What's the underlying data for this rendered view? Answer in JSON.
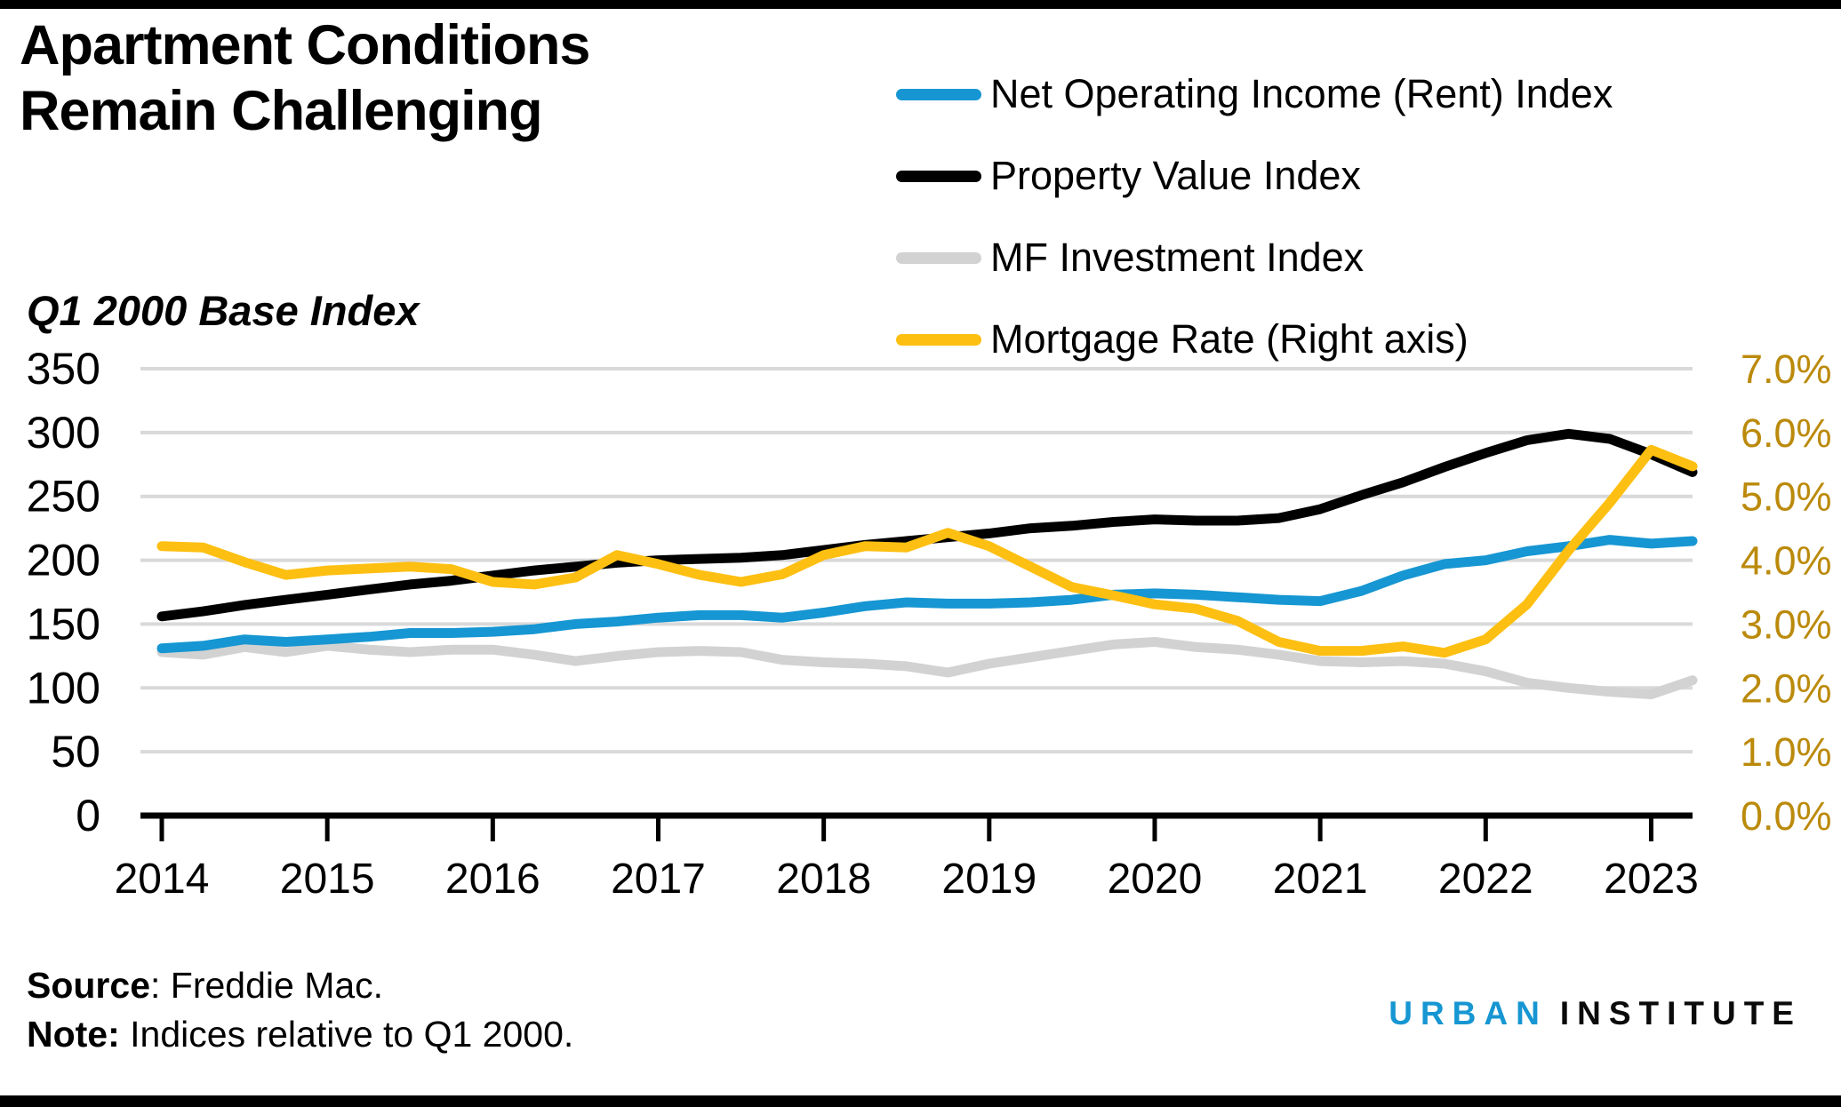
{
  "header": {
    "title": "Apartment Conditions\nRemain Challenging"
  },
  "axis_title_left": "Q1 2000 Base Index",
  "source": {
    "label": "Source",
    "text": ": Freddie Mac."
  },
  "note": {
    "label": "Note:",
    "text": " Indices relative to Q1 2000."
  },
  "logo": {
    "urban": "URBAN",
    "institute": "INSTITUTE"
  },
  "colors": {
    "accent_blue": "#1696d2",
    "black": "#000000",
    "gray_line": "#d2d2d2",
    "yellow": "#fdbf11",
    "gold_axis_text": "#bb8a0b",
    "gridline": "#d9d9d9"
  },
  "chart_data": {
    "type": "line",
    "title": "Apartment Conditions Remain Challenging",
    "ylabel_left": "Q1 2000 Base Index",
    "x_unit": "quarterly, 2014Q1 through 2023Q2",
    "x_tick_labels": [
      "2014",
      "2015",
      "2016",
      "2017",
      "2018",
      "2019",
      "2020",
      "2021",
      "2022",
      "2023"
    ],
    "left_axis": {
      "min": 0,
      "max": 350,
      "step": 50,
      "labels": [
        "0",
        "50",
        "100",
        "150",
        "200",
        "250",
        "300",
        "350"
      ]
    },
    "right_axis": {
      "min": 0,
      "max": 7,
      "step": 1,
      "labels": [
        "0.0%",
        "1.0%",
        "2.0%",
        "3.0%",
        "4.0%",
        "5.0%",
        "6.0%",
        "7.0%"
      ],
      "color": "#bb8a0b"
    },
    "grid": "horizontal only",
    "legend_position": "top-right",
    "draw_order": [
      2,
      0,
      1,
      3
    ],
    "series": [
      {
        "name": "Net Operating Income (Rent) Index",
        "color": "#1696d2",
        "axis": "left",
        "values": [
          131,
          133,
          138,
          136,
          138,
          140,
          143,
          143,
          144,
          146,
          150,
          152,
          155,
          157,
          157,
          155,
          159,
          164,
          167,
          166,
          166,
          167,
          169,
          173,
          174,
          173,
          171,
          169,
          168,
          176,
          188,
          197,
          200,
          207,
          211,
          216,
          213,
          215
        ]
      },
      {
        "name": "Property Value Index",
        "color": "#000000",
        "axis": "left",
        "values": [
          156,
          160,
          165,
          169,
          173,
          177,
          181,
          184,
          188,
          192,
          195,
          198,
          200,
          201,
          202,
          204,
          208,
          212,
          215,
          218,
          221,
          225,
          227,
          230,
          232,
          231,
          231,
          233,
          240,
          251,
          261,
          273,
          284,
          294,
          299,
          295,
          283,
          269
        ]
      },
      {
        "name": "MF Investment Index",
        "color": "#d2d2d2",
        "axis": "left",
        "values": [
          128,
          126,
          132,
          128,
          133,
          130,
          128,
          130,
          130,
          126,
          121,
          125,
          128,
          129,
          128,
          122,
          120,
          119,
          117,
          112,
          119,
          124,
          129,
          134,
          136,
          132,
          130,
          126,
          121,
          120,
          121,
          119,
          113,
          104,
          100,
          97,
          95,
          106
        ]
      },
      {
        "name": "Mortgage Rate (Right axis)",
        "color": "#fdbf11",
        "axis": "right",
        "values": [
          4.22,
          4.2,
          3.97,
          3.77,
          3.84,
          3.87,
          3.9,
          3.86,
          3.66,
          3.62,
          3.73,
          4.08,
          3.94,
          3.77,
          3.66,
          3.78,
          4.08,
          4.22,
          4.2,
          4.43,
          4.22,
          3.9,
          3.58,
          3.45,
          3.31,
          3.24,
          3.05,
          2.72,
          2.58,
          2.58,
          2.65,
          2.55,
          2.76,
          3.31,
          4.15,
          4.9,
          5.73,
          5.47
        ]
      }
    ]
  }
}
